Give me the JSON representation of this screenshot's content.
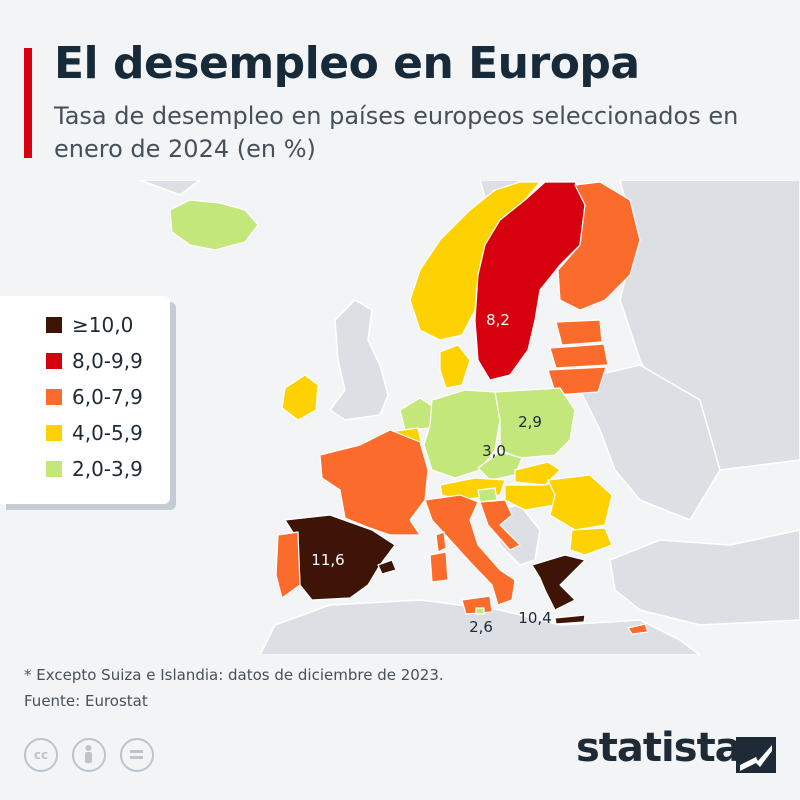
{
  "header": {
    "title": "El desempleo en Europa",
    "subtitle": "Tasa de desempleo en países europeos seleccionados en enero de 2024 (en %)"
  },
  "colors": {
    "accent": "#d7000f",
    "bin_10_plus": "#3d1406",
    "bin_8_9": "#d7000f",
    "bin_6_7": "#fb6c2c",
    "bin_4_5": "#fdd102",
    "bin_2_3": "#c4e77c",
    "no_data": "#dcdfe3"
  },
  "legend": {
    "items": [
      {
        "label": "≥10,0",
        "color": "#3d1406"
      },
      {
        "label": "8,0-9,9",
        "color": "#d7000f"
      },
      {
        "label": "6,0-7,9",
        "color": "#fb6c2c"
      },
      {
        "label": "4,0-5,9",
        "color": "#fdd102"
      },
      {
        "label": "2,0-3,9",
        "color": "#c4e77c"
      }
    ]
  },
  "map": {
    "labels": {
      "spain": "11,6",
      "sweden": "8,2",
      "poland": "2,9",
      "germany": "3,0",
      "greece": "10,4",
      "malta": "2,6"
    }
  },
  "footer": {
    "note": "* Excepto Suiza e Islandia: datos de diciembre de 2023.",
    "source": "Fuente: Eurostat",
    "brand": "statista",
    "cc_icons": [
      "creative-commons-icon",
      "attribution-icon",
      "no-derivatives-icon"
    ]
  }
}
